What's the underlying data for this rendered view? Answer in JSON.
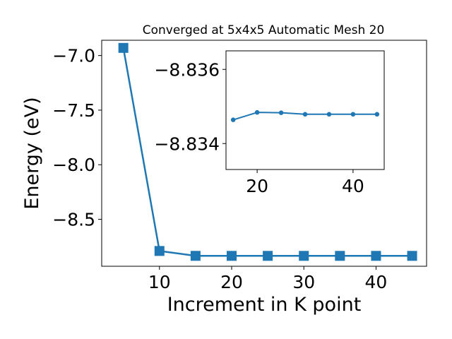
{
  "chart_data": [
    {
      "type": "line",
      "title": "Converged at 5x4x5 Automatic Mesh 20",
      "xlabel": "Increment in K point",
      "ylabel": "Energy (eV)",
      "xlim": [
        2,
        47
      ],
      "ylim": [
        -8.93,
        -6.86
      ],
      "xticks": [
        10,
        20,
        30,
        40
      ],
      "yticks": [
        -7.0,
        -7.5,
        -8.0,
        -8.5
      ],
      "xtick_labels": [
        "10",
        "20",
        "30",
        "40"
      ],
      "ytick_labels": [
        "−7.0",
        "−7.5",
        "−8.0",
        "−8.5"
      ],
      "marker": "square",
      "color": "#1f77b4",
      "grid": false,
      "series": [
        {
          "x": [
            5,
            10,
            15,
            20,
            25,
            30,
            35,
            40,
            45
          ],
          "y": [
            -6.93,
            -8.79,
            -8.8346,
            -8.8348,
            -8.8348,
            -8.8348,
            -8.8348,
            -8.8348,
            -8.8348
          ]
        }
      ]
    },
    {
      "type": "line",
      "placement": "inset-top-right",
      "xlim": [
        13.5,
        46.5
      ],
      "ylim": [
        -8.8365,
        -8.8333
      ],
      "y_axis_inverted": true,
      "xticks": [
        20,
        40
      ],
      "yticks": [
        -8.836,
        -8.834
      ],
      "xtick_labels": [
        "20",
        "40"
      ],
      "ytick_labels": [
        "−8.836",
        "−8.834"
      ],
      "marker": "circle",
      "color": "#1f77b4",
      "grid": false,
      "series": [
        {
          "x": [
            15,
            20,
            25,
            30,
            35,
            40,
            45
          ],
          "y": [
            -8.83464,
            -8.83484,
            -8.83483,
            -8.83479,
            -8.83479,
            -8.83479,
            -8.83479
          ]
        }
      ]
    }
  ]
}
